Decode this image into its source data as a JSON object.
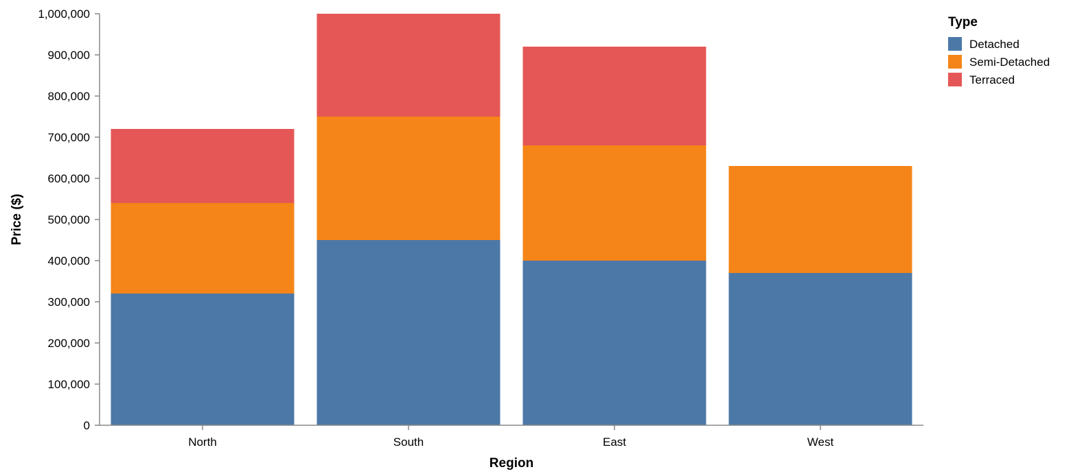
{
  "chart_data": {
    "type": "bar",
    "stacked": true,
    "categories": [
      "North",
      "South",
      "East",
      "West"
    ],
    "series": [
      {
        "name": "Detached",
        "color": "#4c78a8",
        "values": [
          320000,
          450000,
          400000,
          370000
        ]
      },
      {
        "name": "Semi-Detached",
        "color": "#f58518",
        "values": [
          220000,
          300000,
          280000,
          260000
        ]
      },
      {
        "name": "Terraced",
        "color": "#e45756",
        "values": [
          180000,
          250000,
          240000,
          0
        ]
      }
    ],
    "xlabel": "Region",
    "ylabel": "Price ($)",
    "ylim": [
      0,
      1000000
    ],
    "yticks": [
      0,
      100000,
      200000,
      300000,
      400000,
      500000,
      600000,
      700000,
      800000,
      900000,
      1000000
    ],
    "ytick_labels": [
      "0",
      "100,000",
      "200,000",
      "300,000",
      "400,000",
      "500,000",
      "600,000",
      "700,000",
      "800,000",
      "900,000",
      "1,000,000"
    ],
    "legend_title": "Type",
    "legend_position": "top-right",
    "grid": false
  }
}
